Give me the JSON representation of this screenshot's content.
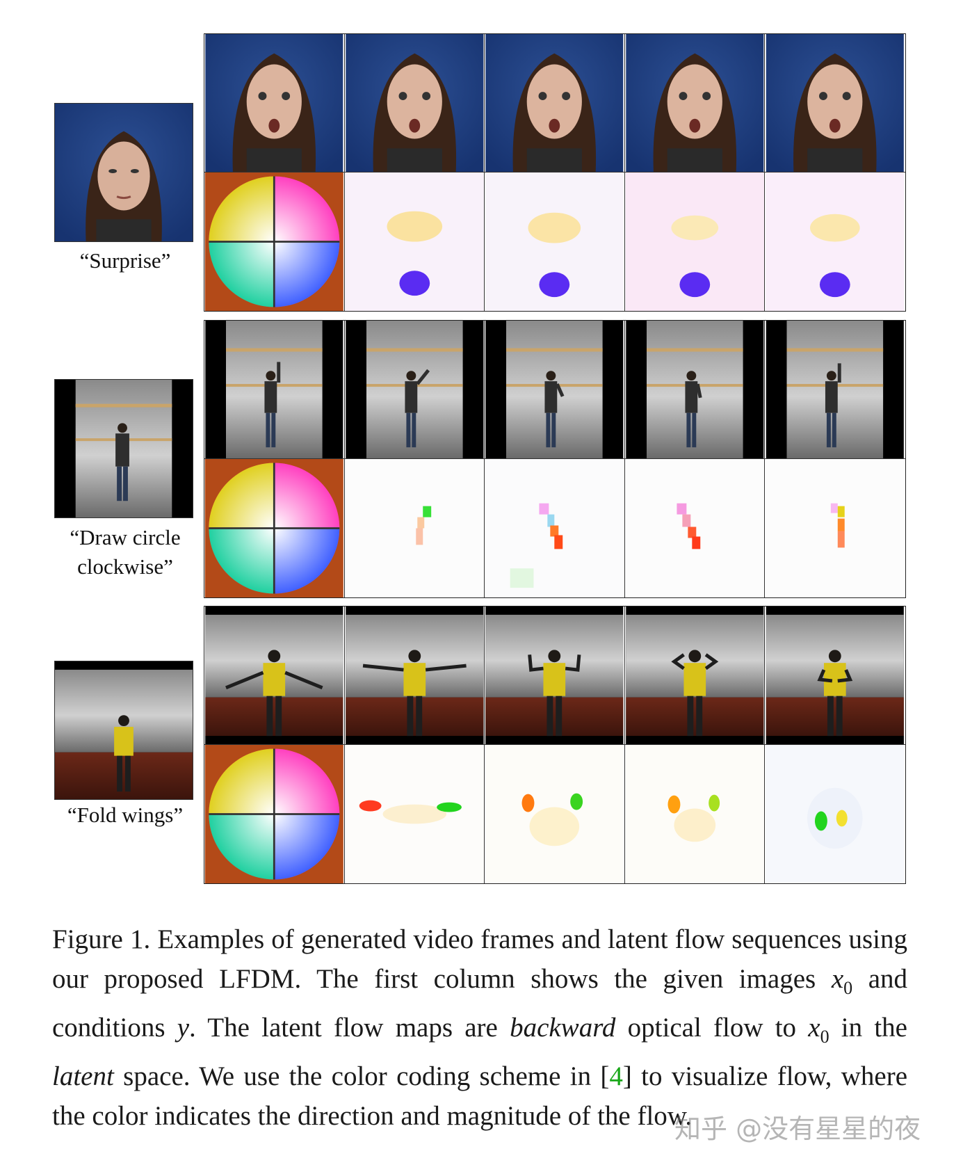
{
  "figure": {
    "rows": [
      {
        "condition_label": "“Surprise”",
        "given_image": "face-woman-neutral",
        "frames": [
          "face-surprise",
          "face-surprise",
          "face-surprise",
          "face-surprise",
          "face-surprise"
        ],
        "flows": [
          "flow-face",
          "flow-face",
          "flow-face",
          "flow-face",
          "flow-face"
        ]
      },
      {
        "condition_label_line1": "“Draw circle",
        "condition_label_line2": "clockwise”",
        "given_image": "person-standing-indoor",
        "frames": [
          "person-arm-up",
          "person-arm-up",
          "person-arm-down",
          "person-arm-down",
          "person-arm-up"
        ],
        "flows": [
          "flow-arm",
          "flow-arm",
          "flow-arm",
          "flow-arm",
          "flow-arm"
        ]
      },
      {
        "condition_label": "“Fold wings”",
        "given_image": "person-yellow-vest",
        "frames": [
          "arms-spread",
          "arms-spread",
          "arms-raised",
          "arms-raised",
          "arms-folded"
        ],
        "flows": [
          "flow-wings",
          "flow-wings",
          "flow-wings",
          "flow-wings",
          "flow-wings"
        ]
      }
    ],
    "legend_icon": "color-wheel-icon"
  },
  "caption": {
    "label": "Figure 1.",
    "part1": "Examples of generated video frames and latent flow sequences using our proposed LFDM. The first column shows the given images",
    "x0": "x",
    "x0_sub": "0",
    "part2": "and conditions",
    "y": "y",
    "part3": ". The latent flow maps are",
    "backward": "backward",
    "part4": "optical flow to",
    "part5": "in the",
    "latent": "latent",
    "part6": "space. We use the color coding scheme in [",
    "ref": "4",
    "part7": "] to visualize flow, where the color indicates the direction and magnitude of the flow."
  },
  "watermark": "知乎 @没有星星的夜"
}
